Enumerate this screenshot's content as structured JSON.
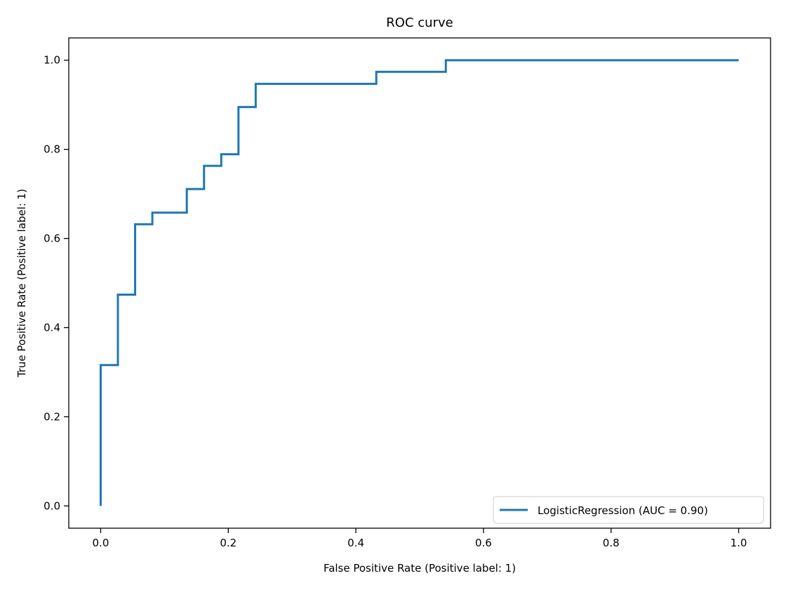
{
  "chart_data": {
    "type": "line",
    "title": "ROC curve",
    "xlabel": "False Positive Rate (Positive label: 1)",
    "ylabel": "True Positive Rate (Positive label: 1)",
    "xlim": [
      -0.05,
      1.05
    ],
    "ylim": [
      -0.05,
      1.05
    ],
    "xticks": [
      0.0,
      0.2,
      0.4,
      0.6,
      0.8,
      1.0
    ],
    "yticks": [
      0.0,
      0.2,
      0.4,
      0.6,
      0.8,
      1.0
    ],
    "xtick_labels": [
      "0.0",
      "0.2",
      "0.4",
      "0.6",
      "0.8",
      "1.0"
    ],
    "ytick_labels": [
      "0.0",
      "0.2",
      "0.4",
      "0.6",
      "0.8",
      "1.0"
    ],
    "grid": false,
    "legend_position": "lower-right",
    "series": [
      {
        "name": "LogisticRegression (AUC = 0.90)",
        "color": "#1f77b4",
        "x": [
          0.0,
          0.0,
          0.027,
          0.027,
          0.054,
          0.054,
          0.081,
          0.081,
          0.135,
          0.135,
          0.162,
          0.162,
          0.189,
          0.189,
          0.216,
          0.216,
          0.243,
          0.243,
          0.432,
          0.432,
          0.541,
          0.541,
          1.0
        ],
        "y": [
          0.0,
          0.316,
          0.316,
          0.474,
          0.474,
          0.632,
          0.632,
          0.658,
          0.658,
          0.711,
          0.711,
          0.763,
          0.763,
          0.789,
          0.789,
          0.895,
          0.895,
          0.947,
          0.947,
          0.974,
          0.974,
          1.0,
          1.0
        ]
      }
    ]
  }
}
